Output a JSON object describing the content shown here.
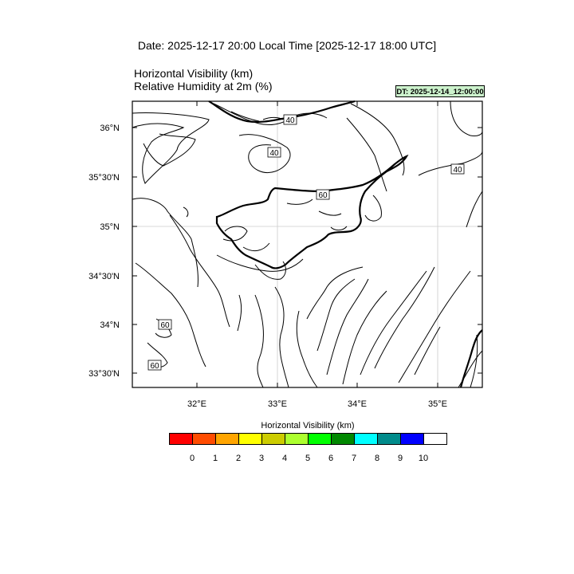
{
  "header": {
    "date_title": "Date: 2025-12-17  20:00 Local Time [2025-12-17  18:00 UTC]",
    "field1": "Horizontal Visibility   (km)",
    "field2": "Relative Humidity at 2m   (%)",
    "dt_badge": "DT: 2025-12-14_12:00:00"
  },
  "map": {
    "lat_labels": [
      "36°N",
      "35°30'N",
      "35°N",
      "34°30'N",
      "34°N",
      "33°30'N"
    ],
    "lon_labels": [
      "32°E",
      "33°E",
      "34°E",
      "35°E"
    ],
    "contour_labels": [
      "40",
      "40",
      "40",
      "60",
      "60",
      "60"
    ],
    "coastline_color": "#000000",
    "gridline_color": "#cccccc"
  },
  "colorbar": {
    "title": "Horizontal Visibility  (km)",
    "ticks": [
      "0",
      "1",
      "2",
      "3",
      "4",
      "5",
      "6",
      "7",
      "8",
      "9",
      "10"
    ],
    "colors": [
      "#ff0000",
      "#ff4c00",
      "#ffa500",
      "#ffff00",
      "#cccc00",
      "#adff2f",
      "#00ff00",
      "#008800",
      "#00ffff",
      "#008b8b",
      "#0000ff",
      "#ffffff"
    ]
  }
}
